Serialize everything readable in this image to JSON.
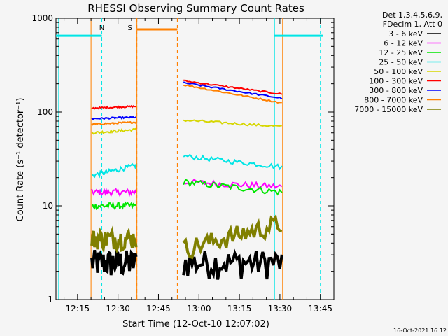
{
  "chart_data": {
    "type": "line",
    "title": "RHESSI Observing Summary Count Rates",
    "xlabel": "Start Time (12-Oct-10 12:07:02)",
    "ylabel": "Count Rate (s⁻¹ detector⁻¹)",
    "y_scale": "log",
    "ylim": [
      1,
      1000
    ],
    "xlim": [
      "12:07",
      "13:50"
    ],
    "x_ticks": [
      "12:15",
      "12:30",
      "12:45",
      "13:00",
      "13:15",
      "13:30",
      "13:45"
    ],
    "y_ticks": [
      "1",
      "10",
      "100",
      "1000"
    ],
    "legend_header": [
      "Det 1,3,4,5,6,9,",
      "FDecim 1, Att 0"
    ],
    "timestamp": "16-Oct-2021 16:12",
    "markers": [
      {
        "label": "N",
        "times": [
          "12:24",
          "13:45"
        ],
        "color": "#00e5e5",
        "bar_level": 650,
        "bar_segments": [
          [
            "12:07",
            "12:24"
          ],
          [
            "13:28",
            "13:46"
          ]
        ]
      },
      {
        "label": "S",
        "times": [
          "12:37",
          "12:52"
        ],
        "color": "#ff8000",
        "bar_level": 760,
        "bar_segments": [
          [
            "12:37",
            "12:52"
          ]
        ]
      }
    ],
    "vlines": [
      {
        "time": "12:08",
        "color": "#00e5e5",
        "style": "solid"
      },
      {
        "time": "13:28",
        "color": "#00e5e5",
        "style": "solid"
      },
      {
        "time": "12:20",
        "color": "#ff8000",
        "style": "solid"
      },
      {
        "time": "12:37",
        "color": "#ff8000",
        "style": "solid"
      },
      {
        "time": "12:52",
        "color": "#ff8000",
        "style": "dashed"
      },
      {
        "time": "13:31",
        "color": "#ff8000",
        "style": "solid"
      }
    ],
    "segments": [
      {
        "start": "12:20",
        "end": "12:37"
      },
      {
        "start": "12:54",
        "end": "13:31"
      }
    ],
    "series": [
      {
        "name": "3 - 6 keV",
        "color": "#000000",
        "noise": 0.35,
        "values": [
          [
            2.5,
            2.5
          ],
          [
            2.5,
            2.5
          ]
        ]
      },
      {
        "name": "6 - 12 keV",
        "color": "#ff00ff",
        "noise": 0.08,
        "values": [
          [
            14,
            14
          ],
          [
            18,
            16
          ]
        ]
      },
      {
        "name": "12 - 25 keV",
        "color": "#00e600",
        "noise": 0.08,
        "values": [
          [
            10,
            10
          ],
          [
            18,
            14
          ]
        ]
      },
      {
        "name": "25 - 50 keV",
        "color": "#00e5e5",
        "noise": 0.06,
        "values": [
          [
            21,
            27
          ],
          [
            34,
            26
          ]
        ]
      },
      {
        "name": "50 - 100 keV",
        "color": "#d6d600",
        "noise": 0.03,
        "values": [
          [
            60,
            65
          ],
          [
            82,
            70
          ]
        ]
      },
      {
        "name": "100 - 300 keV",
        "color": "#ff0000",
        "noise": 0.02,
        "values": [
          [
            110,
            115
          ],
          [
            215,
            155
          ]
        ]
      },
      {
        "name": "300 - 800 keV",
        "color": "#0000ff",
        "noise": 0.02,
        "values": [
          [
            85,
            88
          ],
          [
            205,
            140
          ]
        ]
      },
      {
        "name": "800 - 7000 keV",
        "color": "#ff8000",
        "noise": 0.02,
        "values": [
          [
            74,
            78
          ],
          [
            195,
            125
          ]
        ]
      },
      {
        "name": "7000 - 15000 keV",
        "color": "#808000",
        "noise": 0.25,
        "values": [
          [
            4.5,
            4.5
          ],
          [
            3.5,
            6.5
          ]
        ]
      }
    ]
  }
}
